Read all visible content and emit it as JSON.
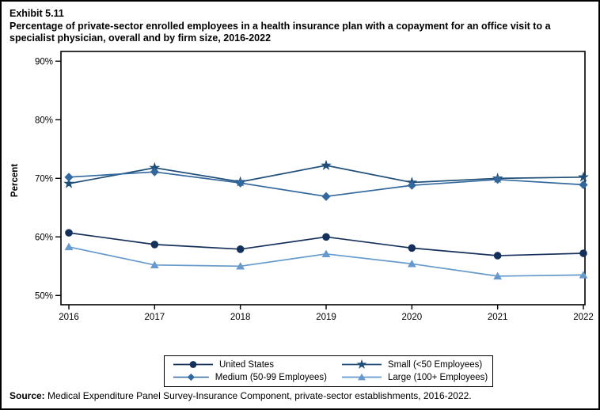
{
  "header": {
    "exhibit": "Exhibit 5.11",
    "title": "Percentage of private-sector enrolled employees in a health insurance plan with a copayment for an office visit to a specialist physician, overall and by firm size, 2016-2022"
  },
  "source": {
    "label": "Source:",
    "text": " Medical Expenditure Panel Survey-Insurance Component, private-sector establishments, 2016-2022."
  },
  "chart_data": {
    "type": "line",
    "title": "",
    "xlabel": "",
    "ylabel": "Percent",
    "ylim": [
      50,
      90
    ],
    "yticks": [
      90,
      80,
      70,
      60,
      50
    ],
    "ytick_suffix": "%",
    "grid": false,
    "legend_position": "bottom",
    "categories": [
      "2016",
      "2017",
      "2018",
      "2019",
      "2020",
      "2021",
      "2022"
    ],
    "series": [
      {
        "name": "United States",
        "marker": "circle",
        "color": "#15315b",
        "values": [
          60.7,
          58.7,
          57.9,
          60.0,
          58.1,
          56.8,
          57.2
        ]
      },
      {
        "name": "Small (<50 Employees)",
        "marker": "star",
        "color": "#1f4e79",
        "values": [
          69.1,
          71.8,
          69.4,
          72.2,
          69.3,
          70.0,
          70.2
        ]
      },
      {
        "name": "Medium (50-99 Employees)",
        "marker": "diamond",
        "color": "#33689e",
        "values": [
          70.2,
          71.1,
          69.2,
          66.9,
          68.8,
          69.8,
          68.9
        ]
      },
      {
        "name": "Large (100+ Employees)",
        "marker": "triangle",
        "color": "#6699cc",
        "values": [
          58.3,
          55.2,
          55.0,
          57.1,
          55.4,
          53.3,
          53.5
        ]
      }
    ]
  }
}
